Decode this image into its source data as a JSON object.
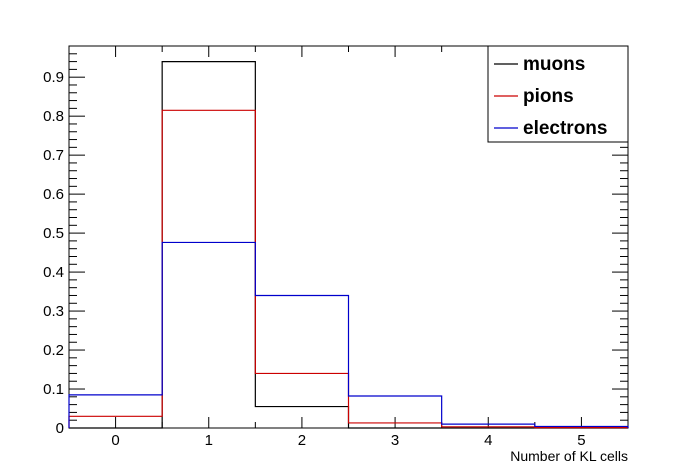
{
  "chart_data": {
    "type": "histogram",
    "xlabel": "Number of KL cells",
    "ylabel": "",
    "bin_edges": [
      -0.5,
      0.5,
      1.5,
      2.5,
      3.5,
      4.5,
      5.5
    ],
    "x_tick_labels": [
      "0",
      "1",
      "2",
      "3",
      "4",
      "5"
    ],
    "y_tick_labels": [
      "0",
      "0.1",
      "0.2",
      "0.3",
      "0.4",
      "0.5",
      "0.6",
      "0.7",
      "0.8",
      "0.9"
    ],
    "xlim": [
      -0.5,
      5.5
    ],
    "ylim": [
      0,
      0.98
    ],
    "grid": false,
    "legend_position": "top-right",
    "series": [
      {
        "name": "muons",
        "color": "#000000",
        "values": [
          0.0,
          0.94,
          0.055,
          0.0,
          0.0,
          0.0
        ]
      },
      {
        "name": "pions",
        "color": "#cc0000",
        "values": [
          0.03,
          0.815,
          0.14,
          0.013,
          0.003,
          0.001
        ]
      },
      {
        "name": "electrons",
        "color": "#0000cc",
        "values": [
          0.085,
          0.476,
          0.34,
          0.082,
          0.01,
          0.004
        ]
      }
    ]
  }
}
